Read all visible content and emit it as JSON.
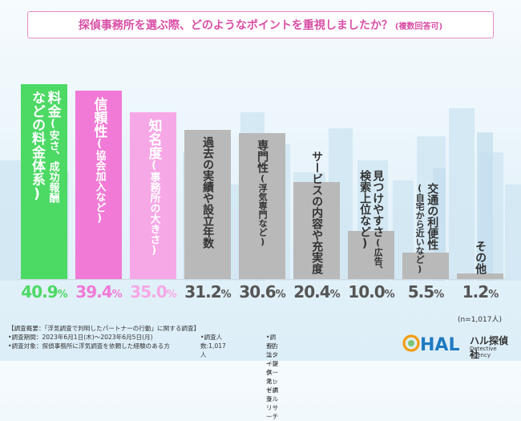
{
  "title": {
    "main": "探偵事務所を選ぶ際、どのようなポイントを重視しましたか？",
    "suffix": "(複数回答可)"
  },
  "chart_data": {
    "type": "bar",
    "title": "探偵事務所を選ぶ際、どのようなポイントを重視しましたか？(複数回答可)",
    "categories": [
      {
        "main": "料金",
        "sub": "(安さ、成功報酬など)",
        "lines": [
          "料金(安さ、成功報酬",
          "などの料金体系)"
        ]
      },
      {
        "main": "信頼性",
        "sub": "(協会加入など)",
        "lines": [
          "信頼性(協会加入など)"
        ]
      },
      {
        "main": "知名度",
        "sub": "(事務所の大きさ)",
        "lines": [
          "知名度(事務所の大きさ)"
        ]
      },
      {
        "main": "過去の実績や設立年数",
        "sub": "",
        "lines": [
          "過去の実績や設立年数"
        ]
      },
      {
        "main": "専門性",
        "sub": "(浮気専門など)",
        "lines": [
          "専門性(浮気専門など)"
        ]
      },
      {
        "main": "サービスの内容や充実度",
        "sub": "",
        "lines": [
          "サービスの内容や充実度"
        ]
      },
      {
        "main": "見つけやすさ",
        "sub": "(広告、検索上位など)",
        "lines": [
          "見つけやすさ(広告、",
          "検索上位など)"
        ]
      },
      {
        "main": "交通の利便性",
        "sub": "(自宅から近いなど)",
        "lines": [
          "交通の利便性",
          "(自宅から近いなど)"
        ]
      },
      {
        "main": "その他",
        "sub": "",
        "lines": [
          "その他"
        ]
      }
    ],
    "values": [
      40.9,
      39.4,
      35.0,
      31.2,
      30.6,
      20.4,
      10.0,
      5.5,
      1.2
    ],
    "value_labels": [
      "40.9",
      "39.4",
      "35.0",
      "31.2",
      "30.6",
      "20.4",
      "10.0",
      "5.5",
      "1.2"
    ],
    "unit": "%",
    "ylim": [
      0,
      42
    ],
    "colors": {
      "bars": [
        "#4cd964",
        "#f07ad6",
        "#f6a8e6",
        "#b9b9b9",
        "#b9b9b9",
        "#b9b9b9",
        "#b9b9b9",
        "#b9b9b9",
        "#b9b9b9"
      ],
      "labels": [
        "#ffffff",
        "#ffffff",
        "#ffffff",
        "#333333",
        "#333333",
        "#333333",
        "#333333",
        "#333333",
        "#333333"
      ],
      "values": [
        "#4cd964",
        "#f07ad6",
        "#f6a8e6",
        "#555555",
        "#555555",
        "#555555",
        "#555555",
        "#555555",
        "#555555"
      ]
    },
    "n_note": "(n=1,017人)"
  },
  "footer": {
    "line1": "【調査概要：「浮気調査で判明したパートナーの行動」に関する調査】",
    "line2a": "•調査期間：2023年6月1日(木)～2023年6月5日(月)",
    "line2b": "•調査人数:1,017人",
    "line2c": "•調査方法：インターネット調査",
    "line3a": "•調査対象：探偵事務所に浮気調査を依頼した経験のある方",
    "line3c": "•モニター提供元：ゼネラルリサーチ"
  },
  "logo": {
    "mark_text": "HAL",
    "name": "ハル探偵社",
    "sub": "Detective Agency"
  },
  "theme": {
    "title_color": "#d94fa6",
    "title_border": "#e98ac7",
    "logo_orange": "#f39c12",
    "logo_green": "#7cc576",
    "logo_blue": "#1f7ac0"
  }
}
